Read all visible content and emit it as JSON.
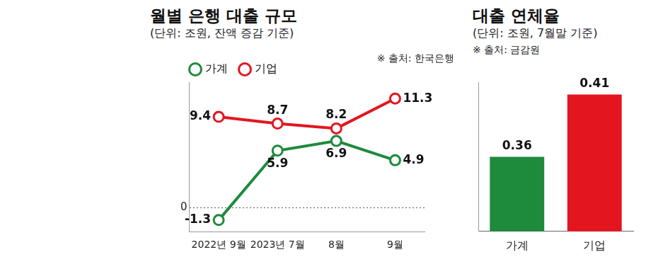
{
  "chart_data": [
    {
      "type": "line",
      "title": "월별 은행 대출 규모",
      "subtitle": "(단위: 조원, 잔액 증감 기준)",
      "source": "※ 출처: 한국은행",
      "categories": [
        "2022년 9월",
        "2023년 7월",
        "8월",
        "9월"
      ],
      "series": [
        {
          "name": "가계",
          "color": "#1e8a3c",
          "values": [
            -1.3,
            5.9,
            6.9,
            4.9
          ],
          "marker": "circle",
          "line_style": "solid"
        },
        {
          "name": "기업",
          "color": "#e3161f",
          "values": [
            9.4,
            8.7,
            8.2,
            11.3
          ],
          "marker": "circle",
          "line_style": "solid"
        }
      ],
      "ylim": [
        -2.5,
        13
      ],
      "yticks": [
        0
      ],
      "grid": true,
      "legend": "top left",
      "data_labels": true
    },
    {
      "type": "bar",
      "title": "대출 연체율",
      "subtitle": "(단위: 조원, 7월말 기준)",
      "source": "※ 출처: 금감원",
      "categories": [
        "가계",
        "기업"
      ],
      "values": [
        0.36,
        0.41
      ],
      "colors": [
        "#1e8a3c",
        "#e3161f"
      ],
      "ylim": [
        0.3,
        0.42
      ],
      "yticks": [],
      "grid": false,
      "tick_labels": "x",
      "data_labels": true
    }
  ]
}
